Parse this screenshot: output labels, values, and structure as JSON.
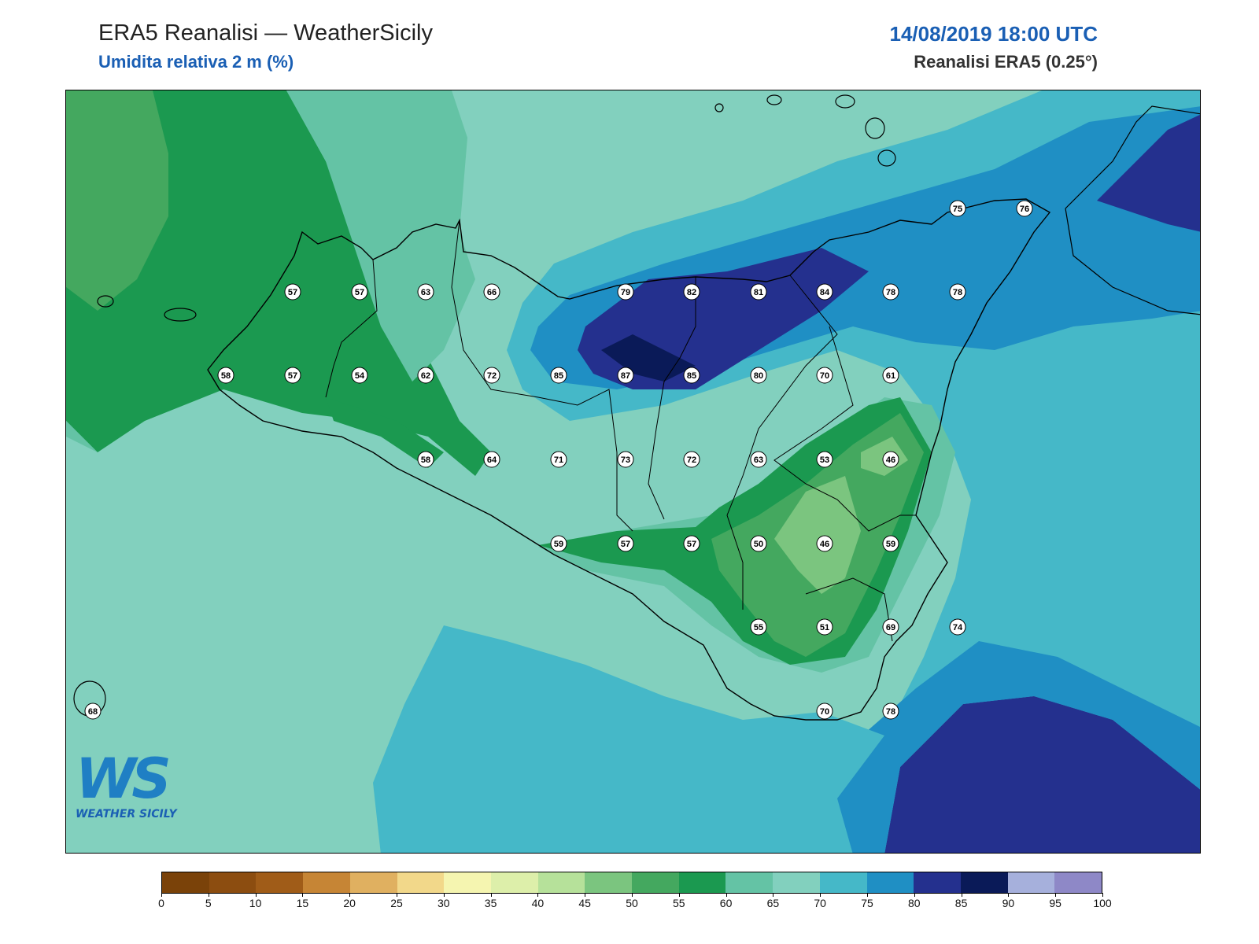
{
  "header": {
    "title": "ERA5 Reanalisi — WeatherSicily",
    "variable": "Umidita relativa 2 m (%)",
    "datetime": "14/08/2019 18:00 UTC",
    "source": "Reanalisi ERA5 (0.25°)"
  },
  "logo": {
    "initials": "WS",
    "name": "WEATHER SICILY"
  },
  "colorbar": {
    "ticks": [
      "0",
      "5",
      "10",
      "15",
      "20",
      "25",
      "30",
      "35",
      "40",
      "45",
      "50",
      "55",
      "60",
      "65",
      "70",
      "75",
      "80",
      "85",
      "90",
      "95",
      "100"
    ],
    "colors": [
      "#7a4209",
      "#8c4d10",
      "#a05c18",
      "#c68535",
      "#e0b060",
      "#f2d88a",
      "#f5f5b0",
      "#ddefaa",
      "#b6e19a",
      "#7bc57f",
      "#44a85f",
      "#1b9950",
      "#64c3a5",
      "#82d0be",
      "#45b8c8",
      "#1f8fc4",
      "#24308e",
      "#0a1a58",
      "#a6b0dc",
      "#8e88c7"
    ]
  },
  "stations": [
    {
      "v": "57"
    },
    {
      "v": "57"
    },
    {
      "v": "63"
    },
    {
      "v": "66"
    },
    {
      "v": "79"
    },
    {
      "v": "82"
    },
    {
      "v": "81"
    },
    {
      "v": "84"
    },
    {
      "v": "78"
    },
    {
      "v": "78"
    },
    {
      "v": "58"
    },
    {
      "v": "57"
    },
    {
      "v": "54"
    },
    {
      "v": "62"
    },
    {
      "v": "72"
    },
    {
      "v": "85"
    },
    {
      "v": "87"
    },
    {
      "v": "85"
    },
    {
      "v": "80"
    },
    {
      "v": "70"
    },
    {
      "v": "61"
    },
    {
      "v": "58"
    },
    {
      "v": "64"
    },
    {
      "v": "71"
    },
    {
      "v": "73"
    },
    {
      "v": "72"
    },
    {
      "v": "63"
    },
    {
      "v": "53"
    },
    {
      "v": "46"
    },
    {
      "v": "59"
    },
    {
      "v": "57"
    },
    {
      "v": "57"
    },
    {
      "v": "50"
    },
    {
      "v": "46"
    },
    {
      "v": "59"
    },
    {
      "v": "55"
    },
    {
      "v": "51"
    },
    {
      "v": "69"
    },
    {
      "v": "74"
    },
    {
      "v": "70"
    },
    {
      "v": "78"
    },
    {
      "v": "75"
    },
    {
      "v": "76"
    },
    {
      "v": "68"
    }
  ]
}
